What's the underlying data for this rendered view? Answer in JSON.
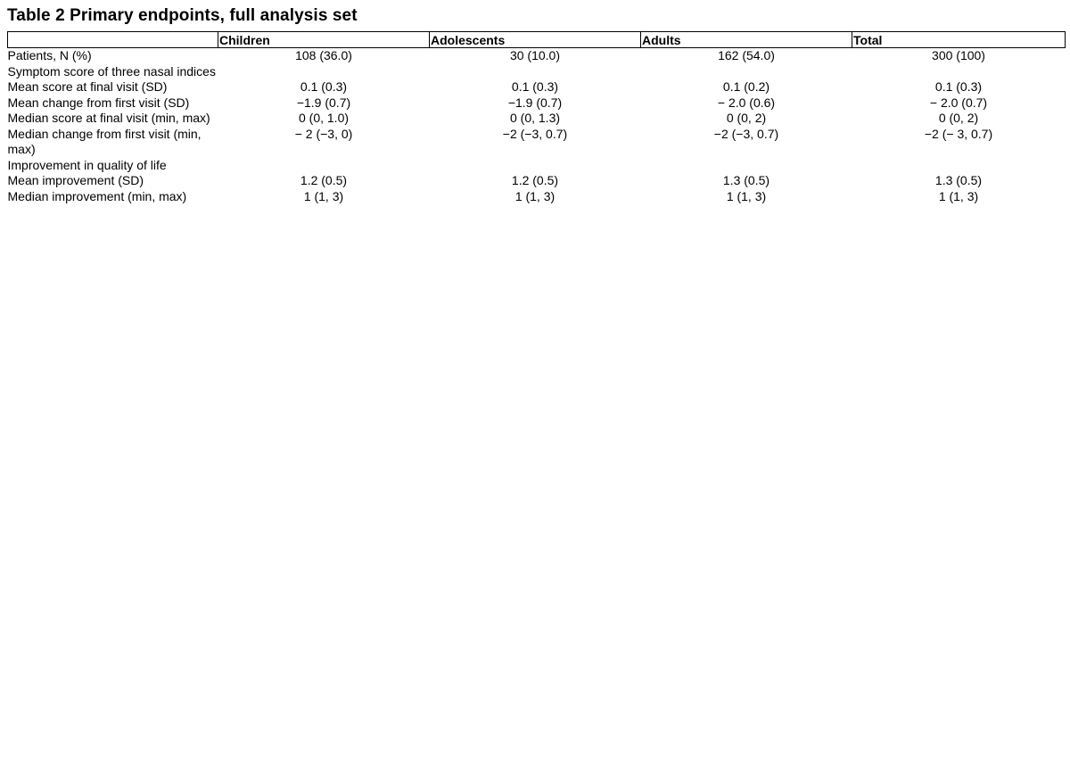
{
  "title": "Table 2 Primary endpoints, full analysis set",
  "columns": [
    "",
    "Children",
    "Adolescents",
    "Adults",
    "Total"
  ],
  "rows": [
    {
      "label": "Patients, N (%)",
      "values": [
        "108 (36.0)",
        "30 (10.0)",
        "162 (54.0)",
        "300 (100)"
      ]
    },
    {
      "label": "Symptom score of three nasal indices",
      "values": [
        "",
        "",
        "",
        ""
      ]
    },
    {
      "label": "Mean score at final visit (SD)",
      "values": [
        "0.1 (0.3)",
        "0.1 (0.3)",
        "0.1 (0.2)",
        "0.1 (0.3)"
      ]
    },
    {
      "label": "Mean change from first visit (SD)",
      "values": [
        "−1.9 (0.7)",
        "−1.9 (0.7)",
        "− 2.0 (0.6)",
        "− 2.0 (0.7)"
      ]
    },
    {
      "label": "Median score at final visit (min, max)",
      "values": [
        "0 (0, 1.0)",
        "0 (0, 1.3)",
        "0 (0, 2)",
        "0 (0, 2)"
      ]
    },
    {
      "label": "Median change from first visit (min, max)",
      "values": [
        "− 2 (−3, 0)",
        "−2 (−3, 0.7)",
        "−2 (−3, 0.7)",
        "−2 (− 3, 0.7)"
      ]
    },
    {
      "label": "Improvement in quality of life",
      "values": [
        "",
        "",
        "",
        ""
      ]
    },
    {
      "label": "Mean improvement (SD)",
      "values": [
        "1.2 (0.5)",
        "1.2 (0.5)",
        "1.3 (0.5)",
        "1.3 (0.5)"
      ]
    },
    {
      "label": "Median improvement (min, max)",
      "values": [
        "1 (1, 3)",
        "1 (1, 3)",
        "1 (1, 3)",
        "1 (1, 3)"
      ]
    }
  ]
}
